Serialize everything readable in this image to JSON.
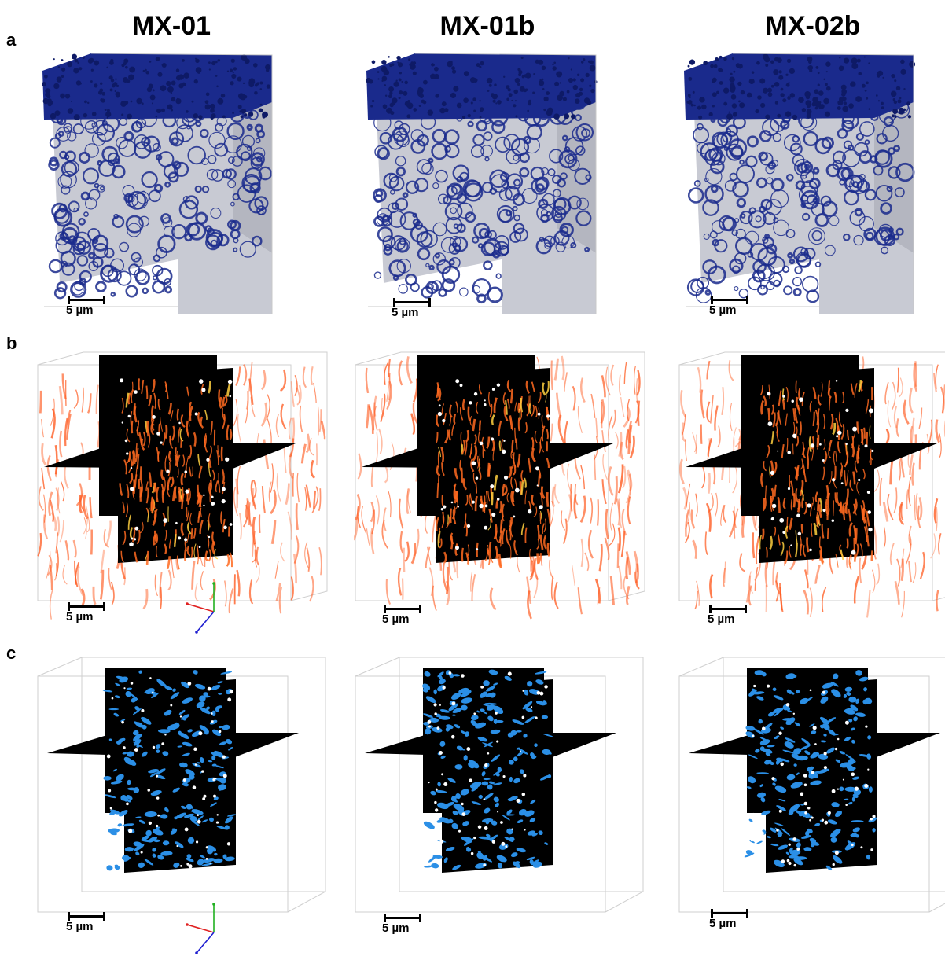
{
  "figure": {
    "columns": [
      {
        "title": "MX-01"
      },
      {
        "title": "MX-01b"
      },
      {
        "title": "MX-02b"
      }
    ],
    "rows": [
      {
        "label": "a"
      },
      {
        "label": "b"
      },
      {
        "label": "c"
      }
    ],
    "scale_bar_label": "5 µm"
  },
  "colors": {
    "row_a_top": "#1a2a8c",
    "row_a_body": "#c8cad3",
    "row_b_volume": "#ff5a1f",
    "row_b_slice": "#000000",
    "row_c_slice": "#000000",
    "row_c_phase": "#2b8fe6",
    "axis_x": "#e02020",
    "axis_y": "#20b020",
    "axis_z": "#2020d0"
  }
}
